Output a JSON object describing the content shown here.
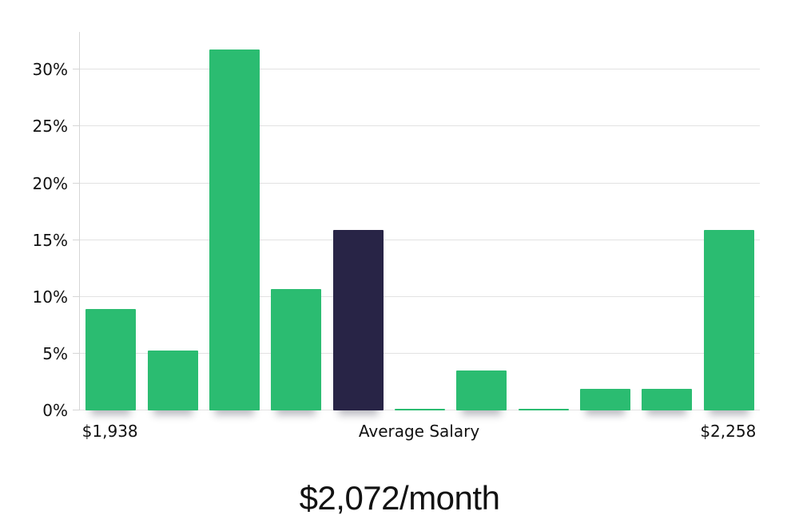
{
  "colors": {
    "page_bg": "#ffffff",
    "bar_green": "#2bbc71",
    "bar_highlight_navy": "#282446",
    "gridline": "#e2e2e2",
    "axis_line": "#d6d6d6",
    "tick_text": "#111111",
    "title_text": "#121212"
  },
  "chart_data": {
    "type": "bar",
    "title": "$2,072/month",
    "xlabel": "",
    "ylabel": "",
    "unit": "percent of people",
    "grid": true,
    "legend": false,
    "ylim": [
      0,
      33.33
    ],
    "y_ticks": [
      {
        "value": 0,
        "label": "0%"
      },
      {
        "value": 5,
        "label": "5%"
      },
      {
        "value": 10,
        "label": "10%"
      },
      {
        "value": 15,
        "label": "15%"
      },
      {
        "value": 20,
        "label": "20%"
      },
      {
        "value": 25,
        "label": "25%"
      },
      {
        "value": 30,
        "label": "30%"
      }
    ],
    "bars": [
      {
        "value": 8.9
      },
      {
        "value": 5.3
      },
      {
        "value": 31.8
      },
      {
        "value": 10.7
      },
      {
        "value": 15.9,
        "highlight": true
      },
      {
        "value": 0.1
      },
      {
        "value": 3.5
      },
      {
        "value": 0.1
      },
      {
        "value": 1.9
      },
      {
        "value": 1.9
      },
      {
        "value": 15.9
      }
    ],
    "highlight_index": 4,
    "x_tick_labels": [
      {
        "bar_index": 0,
        "label": "$1,938"
      },
      {
        "bar_index": 5,
        "label": "Average Salary"
      },
      {
        "bar_index": 10,
        "label": "$2,258"
      }
    ]
  }
}
